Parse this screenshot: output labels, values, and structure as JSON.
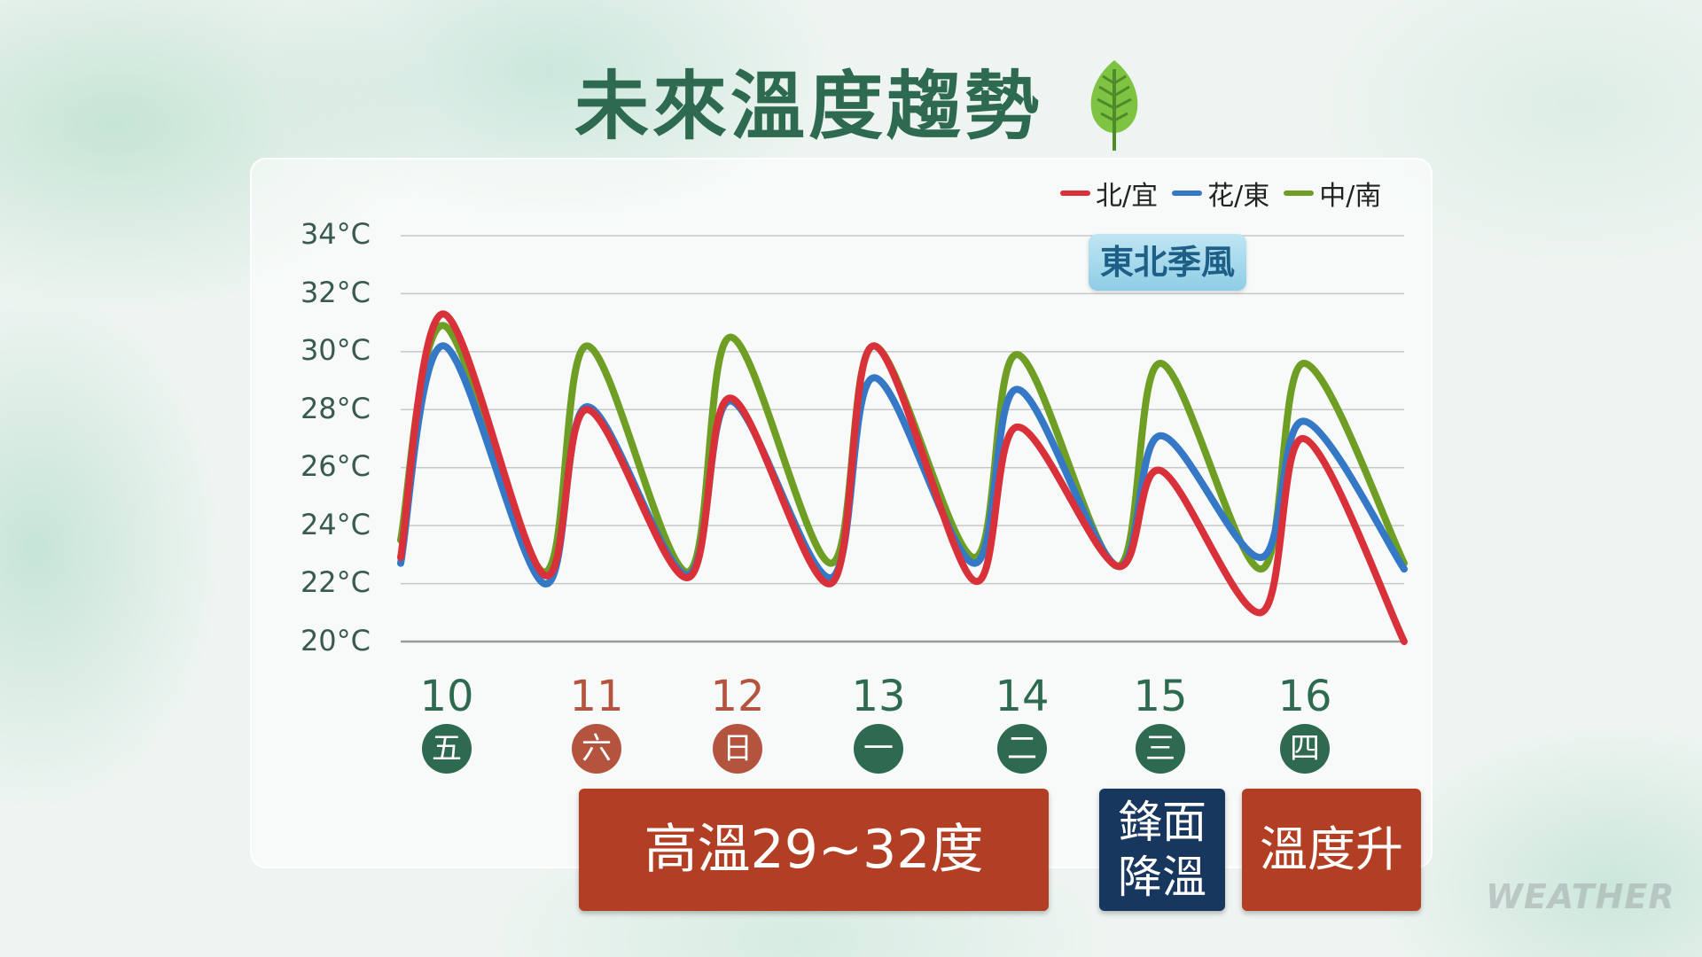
{
  "title": "未來溫度趨勢",
  "badge": "東北季風",
  "watermark": "WEATHER",
  "colors": {
    "north": "#d9313a",
    "east": "#3478c6",
    "south": "#6e9e24",
    "green_dark": "#2d6a4f",
    "weekend": "#b5543e"
  },
  "boxes": {
    "high_temp": "高溫29~32度",
    "front_line1": "鋒面",
    "front_line2": "降溫",
    "temp_rise": "溫度升"
  },
  "days": [
    {
      "date": "10",
      "weekday": "五",
      "weekend": false
    },
    {
      "date": "11",
      "weekday": "六",
      "weekend": true
    },
    {
      "date": "12",
      "weekday": "日",
      "weekend": true
    },
    {
      "date": "13",
      "weekday": "一",
      "weekend": false
    },
    {
      "date": "14",
      "weekday": "二",
      "weekend": false
    },
    {
      "date": "15",
      "weekday": "三",
      "weekend": false
    },
    {
      "date": "16",
      "weekday": "四",
      "weekend": false
    }
  ],
  "chart_data": {
    "type": "line",
    "title": "",
    "xlabel": "",
    "ylabel": "",
    "ylim": [
      20,
      34
    ],
    "yticks": [
      "34°C",
      "32°C",
      "30°C",
      "28°C",
      "26°C",
      "24°C",
      "22°C",
      "20°C"
    ],
    "grid": true,
    "legend_position": "top-right",
    "x_time": [
      0,
      0.3,
      1.0,
      1.3,
      2.0,
      2.3,
      3.0,
      3.3,
      4.0,
      4.3,
      5.0,
      5.3,
      6.0,
      6.3,
      7.0
    ],
    "series": [
      {
        "name": "北/宜",
        "color": "#d9313a",
        "values": [
          22.9,
          31.3,
          22.3,
          28.0,
          22.2,
          28.4,
          22.0,
          30.2,
          22.1,
          27.4,
          22.6,
          25.9,
          21.0,
          27.0,
          20.0
        ]
      },
      {
        "name": "花/東",
        "color": "#3478c6",
        "values": [
          22.7,
          30.2,
          22.0,
          28.1,
          22.3,
          28.3,
          22.2,
          29.1,
          22.7,
          28.7,
          22.6,
          27.1,
          22.9,
          27.6,
          22.5
        ]
      },
      {
        "name": "中/南",
        "color": "#6e9e24",
        "values": [
          23.5,
          30.9,
          22.4,
          30.2,
          22.4,
          30.5,
          22.7,
          30.2,
          22.9,
          29.9,
          22.6,
          29.6,
          22.5,
          29.6,
          22.7
        ]
      }
    ]
  }
}
